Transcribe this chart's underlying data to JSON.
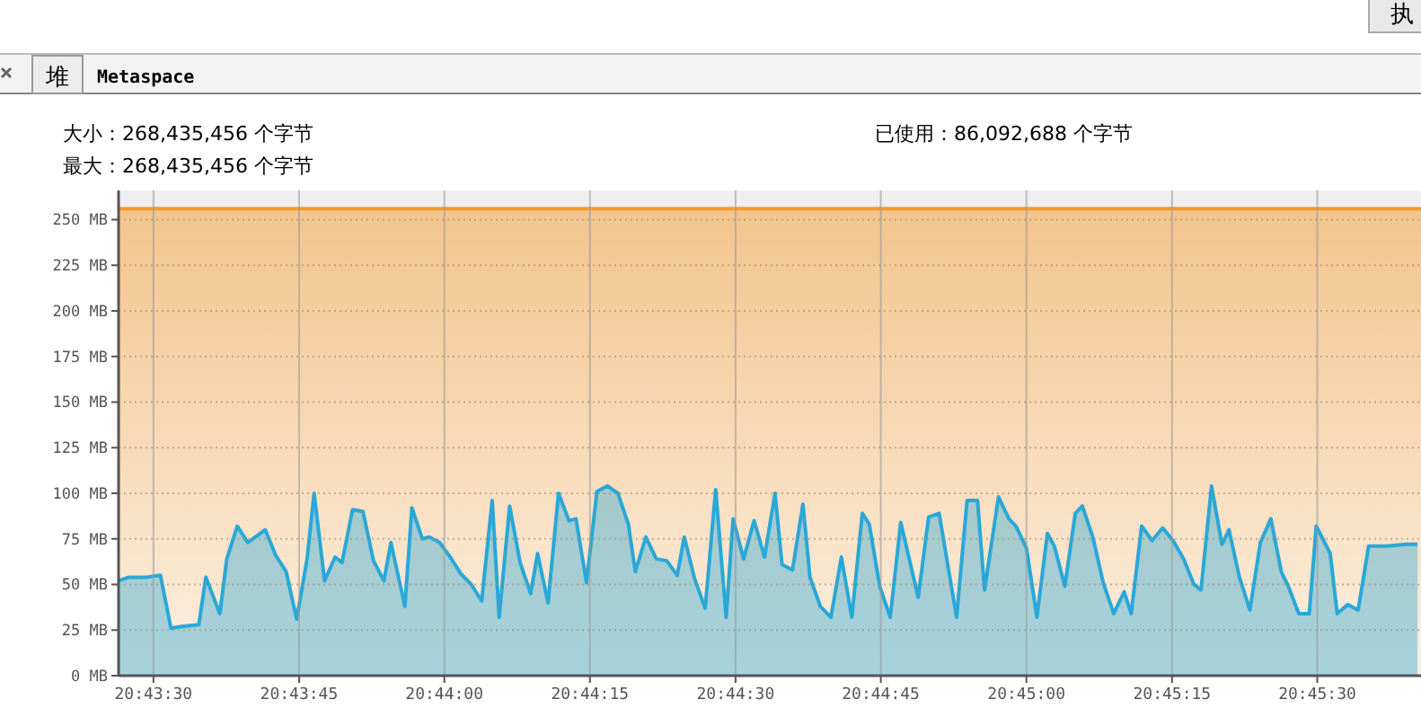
{
  "chart_data": {
    "type": "area",
    "annotations": [
      "堆",
      "Metaspace",
      "大小：268,435,456 个字节",
      "最大：268,435,456 个字节",
      "已使用：86,092,688 个字节",
      "执"
    ],
    "xlim": [
      20.724,
      20.7613
    ],
    "ylim": [
      0,
      266
    ],
    "xticks": [
      {
        "value": 20.725,
        "label": "20:43:30"
      },
      {
        "value": 20.72917,
        "label": "20:43:45"
      },
      {
        "value": 20.73333,
        "label": "20:44:00"
      },
      {
        "value": 20.7375,
        "label": "20:44:15"
      },
      {
        "value": 20.74167,
        "label": "20:44:30"
      },
      {
        "value": 20.74583,
        "label": "20:44:45"
      },
      {
        "value": 20.75,
        "label": "20:45:00"
      },
      {
        "value": 20.75417,
        "label": "20:45:15"
      },
      {
        "value": 20.75833,
        "label": "20:45:30"
      }
    ],
    "yticks": [
      {
        "value": 0,
        "label": "0 MB"
      },
      {
        "value": 25,
        "label": "25 MB"
      },
      {
        "value": 50,
        "label": "50 MB"
      },
      {
        "value": 75,
        "label": "75 MB"
      },
      {
        "value": 100,
        "label": "100 MB"
      },
      {
        "value": 125,
        "label": "125 MB"
      },
      {
        "value": 150,
        "label": "150 MB"
      },
      {
        "value": 175,
        "label": "175 MB"
      },
      {
        "value": 200,
        "label": "200 MB"
      },
      {
        "value": 225,
        "label": "225 MB"
      },
      {
        "value": 250,
        "label": "250 MB"
      }
    ],
    "grid": true,
    "bands": [
      {
        "axis": "y",
        "from": 0,
        "to": 256,
        "color": "#f3c48c"
      }
    ],
    "ref_lines": [
      {
        "axis": "y",
        "value": 256,
        "color": "#f39a2b"
      }
    ],
    "series": [
      {
        "color": "#29a8d8",
        "x": [
          20.724,
          20.7243,
          20.7248,
          20.7252,
          20.7255,
          20.7258,
          20.7263,
          20.7265,
          20.7269,
          20.7271,
          20.7274,
          20.7277,
          20.7282,
          20.7285,
          20.7288,
          20.7291,
          20.7294,
          20.7296,
          20.7299,
          20.7302,
          20.7304,
          20.7307,
          20.731,
          20.7313,
          20.7316,
          20.7318,
          20.7322,
          20.7324,
          20.7327,
          20.7329,
          20.7332,
          20.7335,
          20.7338,
          20.7341,
          20.7344,
          20.7347,
          20.7349,
          20.7352,
          20.7355,
          20.7358,
          20.736,
          20.7363,
          20.7366,
          20.7369,
          20.7371,
          20.7374,
          20.7377,
          20.738,
          20.7383,
          20.7386,
          20.7388,
          20.7391,
          20.7394,
          20.7397,
          20.74,
          20.7402,
          20.7405,
          20.7408,
          20.7411,
          20.7414,
          20.7416,
          20.7419,
          20.7422,
          20.7425,
          20.7428,
          20.743,
          20.7433,
          20.7436,
          20.7438,
          20.7441,
          20.7444,
          20.7447,
          20.745,
          20.7453,
          20.7455,
          20.7458,
          20.7461,
          20.7464,
          20.7469,
          20.7472,
          20.7475,
          20.748,
          20.7483,
          20.7486,
          20.7488,
          20.7492,
          20.7495,
          20.7497,
          20.75,
          20.7503,
          20.7506,
          20.7508,
          20.7511,
          20.7514,
          20.7516,
          20.7519,
          20.7522,
          20.7525,
          20.7528,
          20.753,
          20.7533,
          20.7536,
          20.7539,
          20.7542,
          20.7545,
          20.7548,
          20.755,
          20.7553,
          20.7556,
          20.7558,
          20.7561,
          20.7564,
          20.7567,
          20.757,
          20.7573,
          20.7575,
          20.7578,
          20.7581,
          20.7583,
          20.7587,
          20.7589,
          20.7592,
          20.7595,
          20.7598,
          20.7603,
          20.7609,
          20.7612
        ],
        "values": [
          52,
          54,
          54,
          55,
          26,
          27,
          28,
          54,
          34,
          64,
          82,
          73,
          80,
          66,
          57,
          31,
          64,
          100,
          52,
          65,
          62,
          91,
          90,
          63,
          52,
          73,
          38,
          92,
          75,
          76,
          73,
          65,
          56,
          50,
          41,
          96,
          32,
          93,
          62,
          45,
          67,
          40,
          100,
          85,
          86,
          51,
          101,
          104,
          100,
          83,
          57,
          76,
          64,
          63,
          55,
          76,
          53,
          37,
          102,
          32,
          86,
          64,
          85,
          65,
          100,
          61,
          58,
          94,
          54,
          38,
          32,
          65,
          32,
          89,
          83,
          49,
          32,
          84,
          43,
          87,
          89,
          32,
          96,
          96,
          47,
          98,
          86,
          82,
          70,
          32,
          78,
          71,
          49,
          89,
          93,
          76,
          51,
          34,
          46,
          34,
          82,
          74,
          81,
          74,
          64,
          50,
          47,
          104,
          72,
          80,
          54,
          36,
          73,
          86,
          57,
          49,
          34,
          34,
          82,
          67,
          34,
          39,
          36,
          71,
          71,
          72,
          72
        ]
      }
    ]
  }
}
